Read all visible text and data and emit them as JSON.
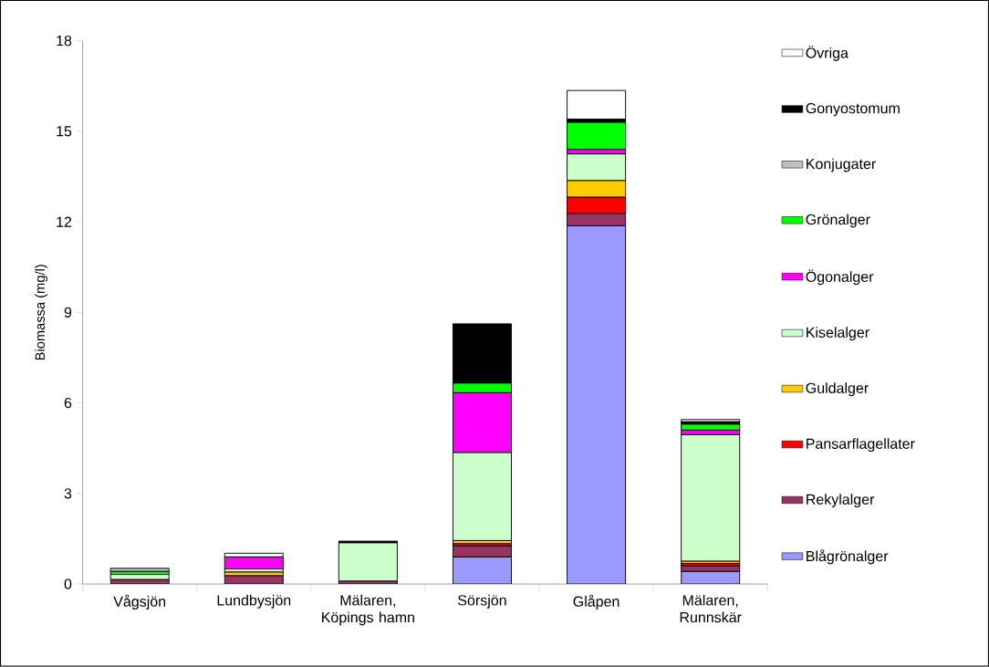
{
  "chart_data": {
    "type": "bar",
    "stacked": true,
    "ylabel": "Biomassa (mg/l)",
    "categories": [
      "Vågsjön",
      "Lundbysjön",
      "Mälaren, Köpings hamn",
      "Sörsjön",
      "Glåpen",
      "Mälaren, Runnskär"
    ],
    "ylim": [
      0,
      18
    ],
    "yticks": [
      0,
      3,
      6,
      9,
      12,
      15,
      18
    ],
    "grid": false,
    "legend": "right",
    "series": [
      {
        "name": "Blågrönalger",
        "color": "#9999ff",
        "values": [
          0,
          0,
          0,
          0.9,
          11.87,
          0.42
        ]
      },
      {
        "name": "Rekylalger",
        "color": "#993366",
        "values": [
          0.15,
          0.28,
          0.1,
          0.36,
          0.41,
          0.18
        ]
      },
      {
        "name": "Pansarflagellater",
        "color": "#ff0000",
        "values": [
          0,
          0,
          0,
          0.08,
          0.54,
          0.08
        ]
      },
      {
        "name": "Guldalger",
        "color": "#ffcc00",
        "values": [
          0,
          0.12,
          0,
          0.1,
          0.55,
          0.08
        ]
      },
      {
        "name": "Kiselalger",
        "color": "#ccffcc",
        "values": [
          0.17,
          0.1,
          1.27,
          2.92,
          0.88,
          4.19
        ]
      },
      {
        "name": "Ögonalger",
        "color": "#ff00ff",
        "values": [
          0,
          0.4,
          0,
          1.98,
          0.15,
          0.15
        ]
      },
      {
        "name": "Grönalger",
        "color": "#00ff00",
        "values": [
          0.1,
          0,
          0,
          0.32,
          0.9,
          0.2
        ]
      },
      {
        "name": "Konjugater",
        "color": "#c0c0c0",
        "values": [
          0.1,
          0,
          0,
          0,
          0,
          0
        ]
      },
      {
        "name": "Gonyostomum",
        "color": "#000000",
        "values": [
          0,
          0,
          0.05,
          1.96,
          0.1,
          0.08
        ]
      },
      {
        "name": "Övriga",
        "color": "#ffffff",
        "values": [
          0,
          0.12,
          0,
          0,
          0.95,
          0.07
        ]
      }
    ]
  }
}
